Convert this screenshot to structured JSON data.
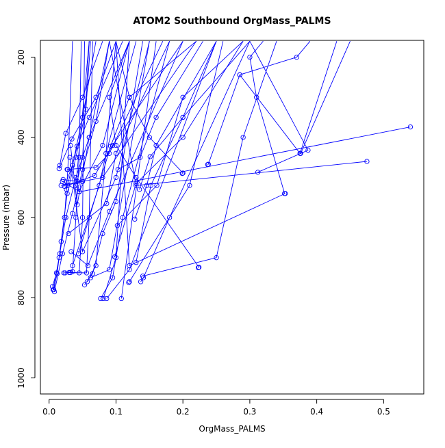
{
  "chart_data": {
    "type": "line",
    "title": "ATOM2 Southbound OrgMass_PALMS",
    "xlabel": "OrgMass_PALMS",
    "ylabel": "Pressure (mbar)",
    "xlim": [
      -0.013,
      0.56
    ],
    "ylim": [
      1040,
      158
    ],
    "y_reversed": true,
    "grid": false,
    "legend": "none",
    "xticks": [
      0.0,
      0.1,
      0.2,
      0.3,
      0.4,
      0.5
    ],
    "xtick_labels": [
      "0.0",
      "0.1",
      "0.2",
      "0.3",
      "0.4",
      "0.5"
    ],
    "yticks": [
      200,
      400,
      600,
      800,
      1000
    ],
    "ytick_labels": [
      "200",
      "400",
      "600",
      "800",
      "1000"
    ],
    "series_color": "#0000ff",
    "marker": "open-circle",
    "series": [
      {
        "x": [
          0.006,
          0.015,
          0.025,
          0.04,
          0.06,
          0.12
        ],
        "y": [
          780,
          700,
          600,
          500,
          400,
          160
        ]
      },
      {
        "x": [
          0.008,
          0.02,
          0.035,
          0.05,
          0.07,
          0.09
        ],
        "y": [
          785,
          690,
          590,
          480,
          360,
          160
        ]
      },
      {
        "x": [
          0.007,
          0.012,
          0.018,
          0.027,
          0.04,
          0.055,
          0.062
        ],
        "y": [
          780,
          740,
          660,
          540,
          450,
          330,
          160
        ]
      },
      {
        "x": [
          0.005,
          0.011,
          0.016,
          0.023,
          0.028,
          0.035
        ],
        "y": [
          772,
          738,
          690,
          600,
          480,
          160
        ]
      },
      {
        "x": [
          0.022,
          0.03,
          0.045,
          0.05,
          0.053
        ],
        "y": [
          738,
          737,
          738,
          600,
          160
        ]
      },
      {
        "x": [
          0.032,
          0.056,
          0.06,
          0.065
        ],
        "y": [
          737,
          738,
          600,
          160
        ]
      },
      {
        "x": [
          0.024,
          0.035,
          0.04,
          0.045,
          0.048
        ],
        "y": [
          738,
          735,
          600,
          450,
          160
        ]
      },
      {
        "x": [
          0.077,
          0.095,
          0.11,
          0.18
        ],
        "y": [
          802,
          750,
          600,
          160
        ]
      },
      {
        "x": [
          0.081,
          0.1,
          0.12
        ],
        "y": [
          802,
          700,
          160
        ]
      },
      {
        "x": [
          0.086,
          0.12,
          0.25
        ],
        "y": [
          802,
          730,
          160
        ]
      },
      {
        "x": [
          0.108,
          0.16
        ],
        "y": [
          802,
          160
        ]
      },
      {
        "x": [
          0.053,
          0.065,
          0.08,
          0.1,
          0.14
        ],
        "y": [
          768,
          740,
          640,
          560,
          160
        ]
      },
      {
        "x": [
          0.057,
          0.07,
          0.1
        ],
        "y": [
          760,
          720,
          160
        ]
      },
      {
        "x": [
          0.062,
          0.09,
          0.15
        ],
        "y": [
          750,
          730,
          160
        ]
      },
      {
        "x": [
          0.119,
          0.12,
          0.21,
          0.26
        ],
        "y": [
          762,
          760,
          520,
          160
        ]
      },
      {
        "x": [
          0.14,
          0.25,
          0.29,
          0.34
        ],
        "y": [
          746,
          700,
          400,
          160
        ]
      },
      {
        "x": [
          0.137,
          0.141,
          0.18,
          0.3
        ],
        "y": [
          760,
          750,
          600,
          160
        ]
      },
      {
        "x": [
          0.13,
          0.152,
          0.2,
          0.3
        ],
        "y": [
          712,
          520,
          350,
          160
        ]
      },
      {
        "x": [
          0.128,
          0.146,
          0.16,
          0.25
        ],
        "y": [
          604,
          520,
          420,
          160
        ]
      },
      {
        "x": [
          0.135,
          0.151,
          0.2,
          0.25
        ],
        "y": [
          530,
          448,
          350,
          160
        ]
      },
      {
        "x": [
          0.098,
          0.13,
          0.2,
          0.29
        ],
        "y": [
          698,
          515,
          400,
          160
        ]
      },
      {
        "x": [
          0.102,
          0.161,
          0.2,
          0.29
        ],
        "y": [
          620,
          520,
          300,
          160
        ]
      },
      {
        "x": [
          0.103,
          0.136,
          0.16,
          0.23
        ],
        "y": [
          480,
          450,
          350,
          160
        ]
      },
      {
        "x": [
          0.223,
          0.224,
          0.13,
          0.1,
          0.09,
          0.12
        ],
        "y": [
          725,
          724,
          500,
          420,
          300,
          160
        ]
      },
      {
        "x": [
          0.199,
          0.2,
          0.15,
          0.12,
          0.1
        ],
        "y": [
          490,
          489,
          400,
          300,
          160
        ]
      },
      {
        "x": [
          0.237,
          0.238,
          0.285,
          0.37,
          0.39
        ],
        "y": [
          468,
          467,
          244,
          200,
          160
        ]
      },
      {
        "x": [
          0.285,
          0.375,
          0.43
        ],
        "y": [
          244,
          440,
          160
        ]
      },
      {
        "x": [
          0.353,
          0.12,
          0.1
        ],
        "y": [
          540,
          720,
          160
        ]
      },
      {
        "x": [
          0.352,
          0.31,
          0.3,
          0.32
        ],
        "y": [
          540,
          300,
          200,
          160
        ]
      },
      {
        "x": [
          0.312,
          0.387,
          0.3
        ],
        "y": [
          487,
          432,
          160
        ]
      },
      {
        "x": [
          0.376,
          0.45
        ],
        "y": [
          440,
          160
        ]
      },
      {
        "x": [
          0.475,
          0.13,
          0.09
        ],
        "y": [
          460,
          520,
          160
        ]
      },
      {
        "x": [
          0.54,
          0.045,
          0.04,
          0.06
        ],
        "y": [
          374,
          536,
          520,
          160
        ]
      },
      {
        "x": [
          0.023,
          0.035,
          0.05,
          0.07
        ],
        "y": [
          522,
          470,
          350,
          160
        ]
      },
      {
        "x": [
          0.016,
          0.025,
          0.05,
          0.08
        ],
        "y": [
          470,
          390,
          300,
          160
        ]
      },
      {
        "x": [
          0.015,
          0.034,
          0.07,
          0.1
        ],
        "y": [
          478,
          404,
          300,
          160
        ]
      },
      {
        "x": [
          0.026,
          0.042,
          0.06,
          0.11
        ],
        "y": [
          530,
          422,
          350,
          160
        ]
      },
      {
        "x": [
          0.035,
          0.075,
          0.085,
          0.13
        ],
        "y": [
          720,
          520,
          440,
          160
        ]
      },
      {
        "x": [
          0.044,
          0.092,
          0.12,
          0.22
        ],
        "y": [
          690,
          422,
          300,
          160
        ]
      },
      {
        "x": [
          0.027,
          0.07,
          0.09,
          0.17
        ],
        "y": [
          480,
          475,
          440,
          160
        ]
      },
      {
        "x": [
          0.028,
          0.068,
          0.095,
          0.2
        ],
        "y": [
          520,
          495,
          420,
          160
        ]
      },
      {
        "x": [
          0.029,
          0.086,
          0.1,
          0.18
        ],
        "y": [
          640,
          565,
          440,
          160
        ]
      },
      {
        "x": [
          0.033,
          0.058,
          0.09,
          0.2
        ],
        "y": [
          685,
          720,
          585,
          160
        ]
      },
      {
        "x": [
          0.031,
          0.05,
          0.1,
          0.15
        ],
        "y": [
          450,
          685,
          500,
          160
        ]
      },
      {
        "x": [
          0.032,
          0.042,
          0.06,
          0.09
        ],
        "y": [
          420,
          568,
          400,
          160
        ]
      },
      {
        "x": [
          0.02,
          0.045,
          0.08,
          0.12
        ],
        "y": [
          510,
          535,
          420,
          160
        ]
      },
      {
        "x": [
          0.018,
          0.05,
          0.08,
          0.22
        ],
        "y": [
          520,
          510,
          500,
          160
        ]
      },
      {
        "x": [
          0.021,
          0.042,
          0.05,
          0.06
        ],
        "y": [
          505,
          510,
          450,
          160
        ]
      }
    ]
  }
}
